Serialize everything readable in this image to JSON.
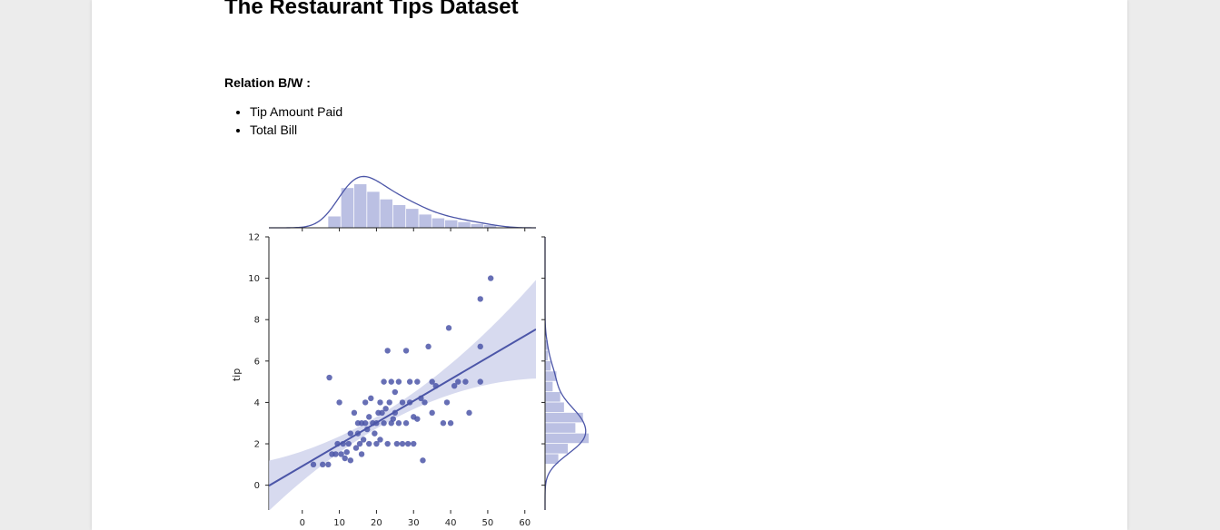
{
  "page": {
    "title": "The Restaurant Tips Dataset",
    "relation_label": "Relation B/W :",
    "relation_items": [
      "Tip Amount Paid",
      "Total Bill"
    ]
  },
  "colors": {
    "point": "#4c56a8",
    "regression_line": "#4c56a8",
    "confidence_band": "#c9cdea",
    "histogram": "#b7bde2",
    "axis": "#222222"
  },
  "chart_data": {
    "type": "scatter",
    "subtype": "jointplot with linear regression, marginal histograms and KDE",
    "xlabel": "",
    "ylabel": "tip",
    "xlim": [
      -9,
      63
    ],
    "ylim": [
      -1.2,
      12
    ],
    "xticks": [
      0,
      10,
      20,
      30,
      40,
      50,
      60
    ],
    "yticks": [
      0,
      2,
      4,
      6,
      8,
      10,
      12
    ],
    "grid": false,
    "regression": {
      "intercept": 0.92,
      "slope": 0.105
    },
    "points": [
      [
        3,
        1
      ],
      [
        5.5,
        1
      ],
      [
        7,
        1
      ],
      [
        7.3,
        5.2
      ],
      [
        8,
        1.5
      ],
      [
        9,
        1.5
      ],
      [
        9.5,
        2
      ],
      [
        10,
        4
      ],
      [
        10.5,
        1.5
      ],
      [
        11,
        2
      ],
      [
        11.5,
        1.3
      ],
      [
        12,
        1.6
      ],
      [
        12.5,
        2
      ],
      [
        13,
        1.2
      ],
      [
        13,
        2.5
      ],
      [
        14,
        3.5
      ],
      [
        14.5,
        1.8
      ],
      [
        15,
        2.5
      ],
      [
        15,
        3
      ],
      [
        15.5,
        2
      ],
      [
        16,
        1.5
      ],
      [
        16,
        3
      ],
      [
        16.5,
        2.2
      ],
      [
        17,
        3
      ],
      [
        17,
        4
      ],
      [
        17.5,
        2.7
      ],
      [
        18,
        3.3
      ],
      [
        18,
        2
      ],
      [
        18.5,
        4.2
      ],
      [
        19,
        3
      ],
      [
        19.5,
        2.5
      ],
      [
        20,
        3
      ],
      [
        20,
        2
      ],
      [
        20.5,
        3.5
      ],
      [
        21,
        4
      ],
      [
        21,
        2.2
      ],
      [
        21.5,
        3.5
      ],
      [
        22,
        3
      ],
      [
        22,
        5
      ],
      [
        22.5,
        3.7
      ],
      [
        23,
        2
      ],
      [
        23,
        6.5
      ],
      [
        23.5,
        4
      ],
      [
        24,
        3
      ],
      [
        24,
        5
      ],
      [
        24.5,
        3.2
      ],
      [
        25,
        3.5
      ],
      [
        25,
        4.5
      ],
      [
        25.5,
        2
      ],
      [
        26,
        5
      ],
      [
        26,
        3
      ],
      [
        27,
        2
      ],
      [
        27,
        4
      ],
      [
        28,
        6.5
      ],
      [
        28,
        3
      ],
      [
        28.5,
        2
      ],
      [
        29,
        5
      ],
      [
        29,
        4
      ],
      [
        30,
        2
      ],
      [
        30,
        3.3
      ],
      [
        31,
        5
      ],
      [
        31,
        3.2
      ],
      [
        32,
        4.2
      ],
      [
        32.5,
        1.2
      ],
      [
        33,
        4
      ],
      [
        34,
        6.7
      ],
      [
        35,
        5
      ],
      [
        35,
        3.5
      ],
      [
        36,
        4.8
      ],
      [
        38,
        3
      ],
      [
        39,
        4
      ],
      [
        39.5,
        7.6
      ],
      [
        40,
        3
      ],
      [
        41,
        4.8
      ],
      [
        42,
        5
      ],
      [
        44,
        5
      ],
      [
        45,
        3.5
      ],
      [
        48,
        9
      ],
      [
        48,
        6.7
      ],
      [
        48,
        5
      ],
      [
        50.8,
        10
      ]
    ],
    "top_histogram": {
      "bin_edges": [
        7,
        10.5,
        14,
        17.5,
        21,
        24.5,
        28,
        31.5,
        35,
        38.5,
        42,
        45.5,
        49,
        52.5
      ],
      "heights": [
        12,
        42,
        46,
        38,
        30,
        24,
        20,
        14,
        10,
        8,
        6,
        4,
        3
      ]
    },
    "right_histogram": {
      "bin_edges": [
        1,
        1.5,
        2,
        2.5,
        3,
        3.5,
        4,
        4.5,
        5,
        5.5,
        6,
        6.5,
        7
      ],
      "heights": [
        14,
        24,
        46,
        32,
        40,
        20,
        16,
        8,
        12,
        6,
        3,
        3
      ]
    }
  }
}
